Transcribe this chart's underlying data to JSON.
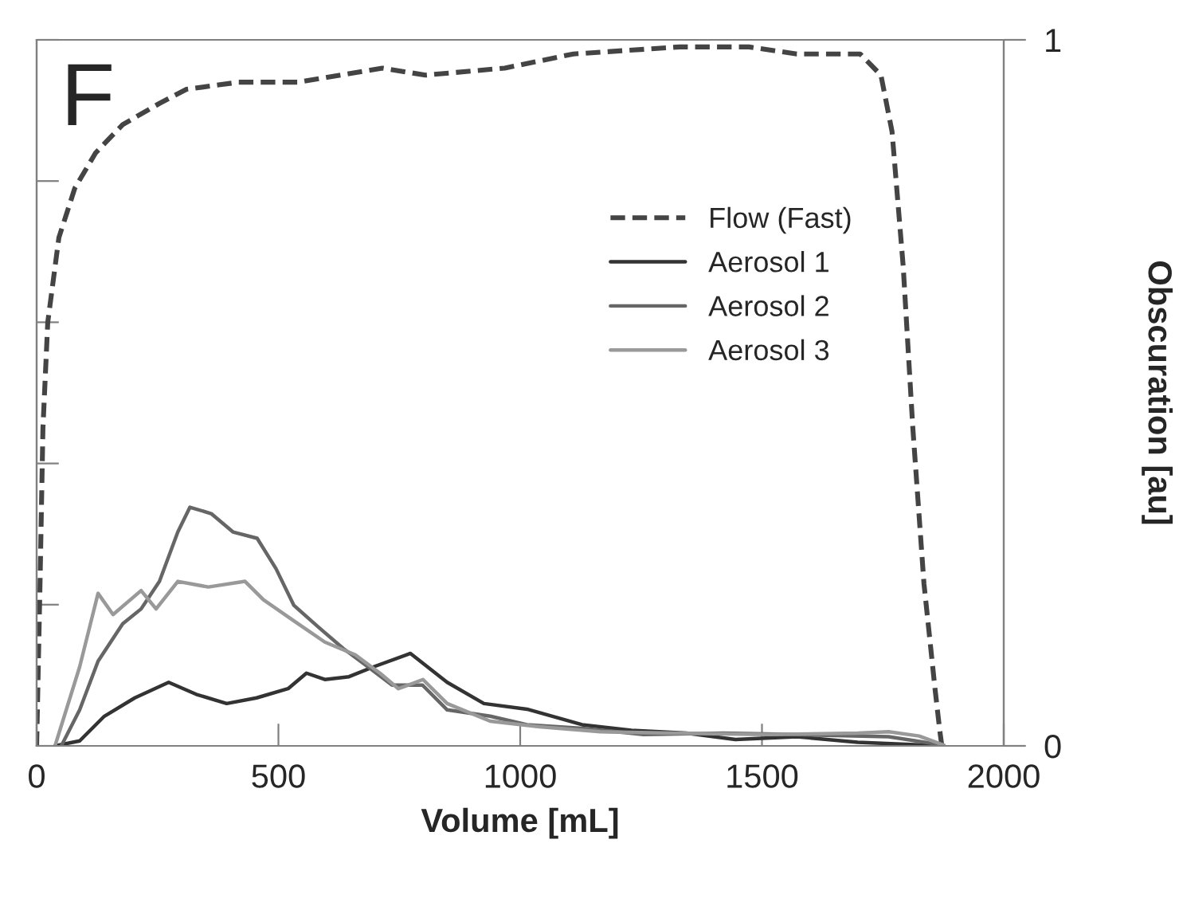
{
  "chart_data": {
    "type": "line",
    "xlabel": "Volume [mL]",
    "ylabel": "Obscuration [au]",
    "annotations": [
      "F"
    ],
    "xlim": [
      0,
      2000
    ],
    "xticks": [
      0,
      500,
      1000,
      1500,
      2000
    ],
    "ylim": [
      0,
      1
    ],
    "yticks": [
      0,
      {
        "value": 0.2,
        "label": null
      },
      {
        "value": 0.4,
        "label": null
      },
      {
        "value": 0.6,
        "label": null
      },
      {
        "value": 0.8,
        "label": null
      },
      1
    ],
    "grid": false,
    "legend": "upper right",
    "marker": "none",
    "series": [
      {
        "name": "Flow (Fast)",
        "color": "#444444",
        "line_style": "dashed",
        "x": [
          0,
          7,
          13,
          23,
          46,
          79,
          122,
          178,
          254,
          310,
          418,
          540,
          715,
          804,
          968,
          1110,
          1330,
          1473,
          1572,
          1703,
          1746,
          1769,
          1792,
          1812,
          1835,
          1858,
          1868,
          1872
        ],
        "values": [
          0,
          0.23,
          0.45,
          0.6,
          0.72,
          0.79,
          0.84,
          0.88,
          0.91,
          0.93,
          0.94,
          0.94,
          0.96,
          0.95,
          0.96,
          0.98,
          0.99,
          0.99,
          0.98,
          0.98,
          0.95,
          0.87,
          0.68,
          0.45,
          0.23,
          0.08,
          0.02,
          0
        ]
      },
      {
        "name": "Aerosol 1",
        "color": "#333333",
        "line_style": "solid",
        "x": [
          38,
          89,
          140,
          203,
          273,
          330,
          393,
          455,
          520,
          558,
          596,
          646,
          697,
          773,
          849,
          925,
          1014,
          1128,
          1230,
          1344,
          1445,
          1572,
          1698,
          1876
        ],
        "values": [
          0,
          0.007,
          0.042,
          0.068,
          0.09,
          0.073,
          0.06,
          0.068,
          0.081,
          0.103,
          0.094,
          0.098,
          0.112,
          0.131,
          0.09,
          0.06,
          0.052,
          0.03,
          0.022,
          0.018,
          0.009,
          0.013,
          0.005,
          0
        ]
      },
      {
        "name": "Aerosol 2",
        "color": "#666666",
        "line_style": "solid",
        "x": [
          51,
          89,
          127,
          178,
          216,
          254,
          292,
          317,
          361,
          406,
          456,
          495,
          532,
          583,
          634,
          685,
          735,
          798,
          849,
          938,
          1014,
          1128,
          1255,
          1420,
          1572,
          1762,
          1876
        ],
        "values": [
          0,
          0.051,
          0.12,
          0.173,
          0.194,
          0.233,
          0.303,
          0.338,
          0.329,
          0.303,
          0.294,
          0.251,
          0.199,
          0.168,
          0.138,
          0.112,
          0.086,
          0.086,
          0.051,
          0.042,
          0.03,
          0.025,
          0.016,
          0.018,
          0.016,
          0.013,
          0.001
        ]
      },
      {
        "name": "Aerosol 3",
        "color": "#999999",
        "line_style": "solid",
        "x": [
          38,
          89,
          127,
          158,
          216,
          247,
          292,
          355,
          431,
          469,
          532,
          596,
          659,
          710,
          748,
          799,
          849,
          938,
          1040,
          1166,
          1318,
          1509,
          1698,
          1762,
          1825,
          1876
        ],
        "values": [
          0,
          0.112,
          0.216,
          0.186,
          0.22,
          0.194,
          0.233,
          0.225,
          0.233,
          0.207,
          0.177,
          0.147,
          0.129,
          0.103,
          0.081,
          0.094,
          0.06,
          0.035,
          0.027,
          0.02,
          0.018,
          0.016,
          0.018,
          0.02,
          0.014,
          0.001
        ]
      }
    ]
  }
}
